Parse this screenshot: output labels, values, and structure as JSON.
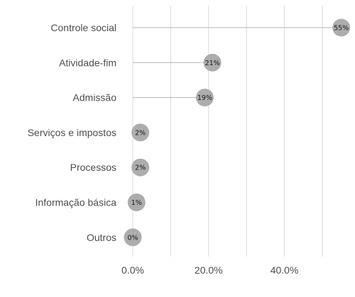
{
  "chart_data": {
    "type": "lollipop",
    "orientation": "horizontal",
    "categories": [
      "Controle social",
      "Atividade-fim",
      "Admissão",
      "Serviços e impostos",
      "Processos",
      "Informação básica",
      "Outros"
    ],
    "values": [
      55,
      21,
      19,
      2,
      2,
      1,
      0
    ],
    "data_labels": [
      "55%",
      "21%",
      "19%",
      "2%",
      "2%",
      "1%",
      "0%"
    ],
    "xlim": [
      0,
      56
    ],
    "xticks": [
      0,
      20,
      40
    ],
    "xtick_labels": [
      "0.0%",
      "20.0%",
      "40.0%"
    ],
    "minor_gridlines": [
      10,
      30,
      50
    ],
    "grid": true,
    "colors": {
      "marker": "#adadad",
      "stem": "#b3b3b3",
      "grid": "#d9d9d9",
      "text": "#4d4d4d"
    }
  }
}
